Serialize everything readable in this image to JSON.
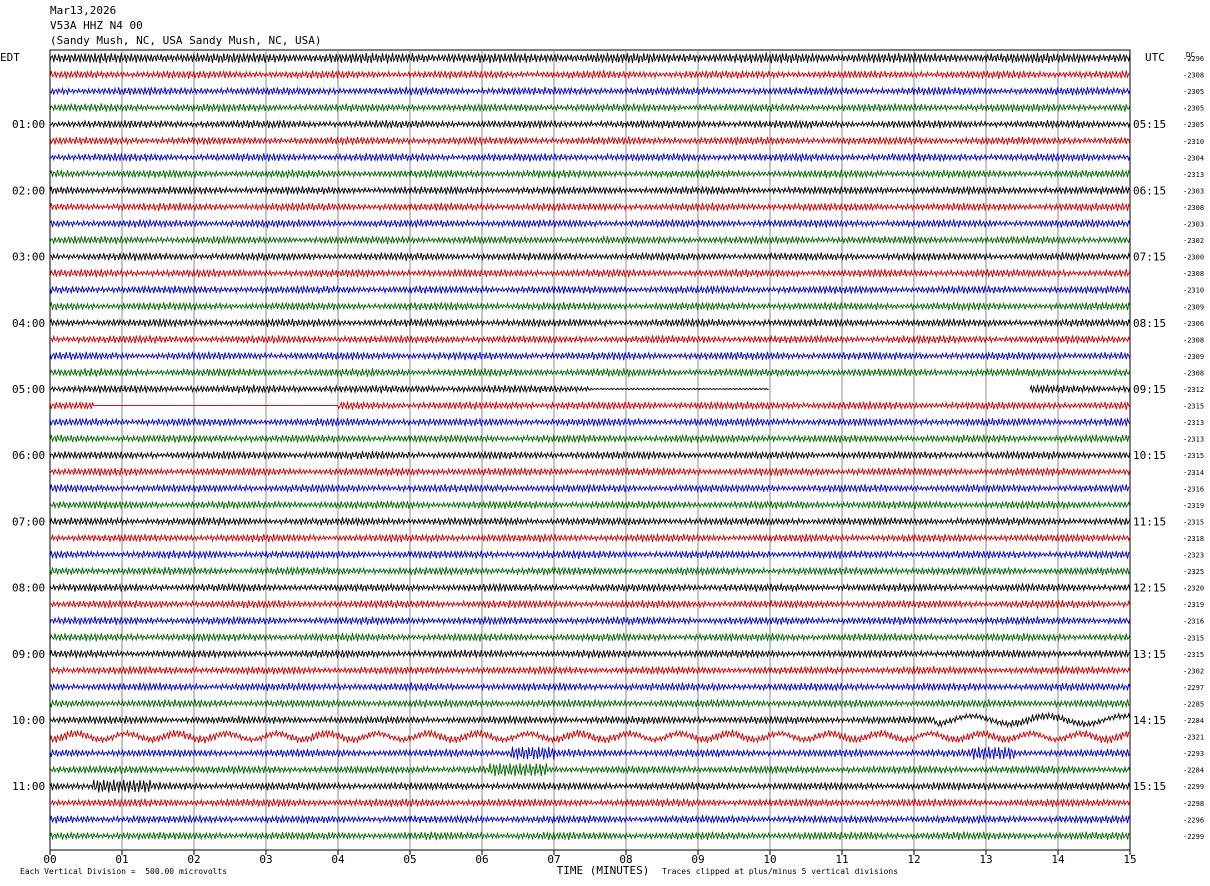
{
  "header": {
    "date": "Mar13,2026",
    "channel": "V53A HHZ N4 00",
    "location": "(Sandy Mush, NC, USA Sandy Mush, NC, USA)"
  },
  "chart_data": {
    "type": "line",
    "left_axis_label": "EDT",
    "right_axis_label": "UTC",
    "dc_label": "DC",
    "xlabel": "TIME (MINUTES)",
    "x_ticks": [
      "00",
      "01",
      "02",
      "03",
      "04",
      "05",
      "06",
      "07",
      "08",
      "09",
      "10",
      "11",
      "12",
      "13",
      "14",
      "15"
    ],
    "xlim": [
      0,
      15
    ],
    "left_time_labels": [
      "01:00",
      "02:00",
      "03:00",
      "04:00",
      "05:00",
      "06:00",
      "07:00",
      "08:00",
      "09:00",
      "10:00",
      "11:00"
    ],
    "right_time_labels": [
      "05:15",
      "06:15",
      "07:15",
      "08:15",
      "09:15",
      "10:15",
      "11:15",
      "12:15",
      "13:15",
      "14:15",
      "15:15"
    ],
    "time_label_every_n_traces": 4,
    "time_label_first_trace": 4,
    "trace_colors": [
      "#000000",
      "#cc0000",
      "#0000cc",
      "#006600"
    ],
    "dc_offsets": [
      "-2296",
      "-2308",
      "-2305",
      "-2305",
      "-2305",
      "-2310",
      "-2304",
      "-2313",
      "-2303",
      "-2308",
      "-2303",
      "-2302",
      "-2300",
      "-2308",
      "-2310",
      "-2309",
      "-2306",
      "-2308",
      "-2309",
      "-2308",
      "-2312",
      "-2315",
      "-2313",
      "-2313",
      "-2315",
      "-2314",
      "-2316",
      "-2319",
      "-2315",
      "-2318",
      "-2323",
      "-2325",
      "-2320",
      "-2319",
      "-2316",
      "-2315",
      "-2315",
      "-2302",
      "-2297",
      "-2285",
      "-2284",
      "-2321",
      "-2293",
      "-2284",
      "-2299",
      "-2298",
      "-2296",
      "-2299"
    ],
    "data_gap": {
      "trace_index": 20,
      "start_min": 10.0,
      "end_min": 13.6
    },
    "flatline": {
      "trace_index": 21,
      "start_min": 0.6,
      "end_min": 4.0
    },
    "events": [
      {
        "trace_index": 42,
        "start_min": 6.4,
        "end_min": 7.0
      },
      {
        "trace_index": 42,
        "start_min": 12.8,
        "end_min": 13.4
      },
      {
        "trace_index": 43,
        "start_min": 6.1,
        "end_min": 6.9
      },
      {
        "trace_index": 44,
        "start_min": 0.6,
        "end_min": 1.4
      }
    ],
    "footer_left": "Each Vertical Division =  500.00 microvolts",
    "footer_right": "Traces clipped at plus/minus 5 vertical divisions"
  }
}
